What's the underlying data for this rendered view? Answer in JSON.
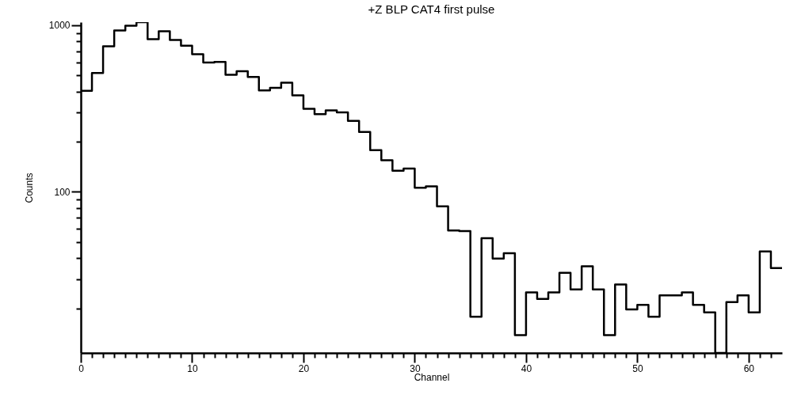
{
  "chart_data": {
    "type": "histogram",
    "title": "+Z BLP CAT4 first pulse",
    "xlabel": "Channel",
    "ylabel": "Counts",
    "bins": [
      0,
      1,
      2,
      3,
      4,
      5,
      6,
      7,
      8,
      9,
      10,
      11,
      12,
      13,
      14,
      15,
      16,
      17,
      18,
      19,
      20,
      21,
      22,
      23,
      24,
      25,
      26,
      27,
      28,
      29,
      30,
      31,
      32,
      33,
      34,
      35,
      36,
      37,
      38,
      39,
      40,
      41,
      42,
      43,
      44,
      45,
      46,
      47,
      48,
      49,
      50,
      51,
      52,
      53,
      54,
      55,
      56,
      57,
      58,
      59,
      60,
      61,
      62,
      63
    ],
    "values": [
      404,
      517,
      748,
      930,
      995,
      1044,
      826,
      920,
      817,
      755,
      670,
      597,
      603,
      504,
      530,
      490,
      406,
      421,
      452,
      380,
      315,
      293,
      308,
      300,
      267,
      229,
      178,
      155,
      134,
      138,
      106,
      108,
      82,
      58.6,
      58.2,
      17.8,
      52.8,
      39.8,
      42.8,
      13.8,
      24.9,
      22.8,
      24.9,
      32.7,
      26.0,
      35.8,
      26.0,
      13.8,
      27.8,
      19.7,
      21.0,
      17.8,
      23.9,
      23.9,
      24.9,
      21.0,
      18.9,
      null,
      21.8,
      23.9,
      18.9,
      43.9,
      34.9
    ],
    "color": "#000000",
    "log": "y",
    "grid": false,
    "xlim": [
      0,
      63
    ],
    "ylim": [
      10.8,
      1044
    ],
    "xticks": [
      0,
      {
        "value": 1,
        "label": null
      },
      {
        "value": 2,
        "label": null
      },
      {
        "value": 3,
        "label": null
      },
      {
        "value": 4,
        "label": null
      },
      {
        "value": 5,
        "label": null
      },
      {
        "value": 6,
        "label": null
      },
      {
        "value": 7,
        "label": null
      },
      {
        "value": 8,
        "label": null
      },
      {
        "value": 9,
        "label": null
      },
      10,
      {
        "value": 11,
        "label": null
      },
      {
        "value": 12,
        "label": null
      },
      {
        "value": 13,
        "label": null
      },
      {
        "value": 14,
        "label": null
      },
      {
        "value": 15,
        "label": null
      },
      {
        "value": 16,
        "label": null
      },
      {
        "value": 17,
        "label": null
      },
      {
        "value": 18,
        "label": null
      },
      {
        "value": 19,
        "label": null
      },
      20,
      {
        "value": 21,
        "label": null
      },
      {
        "value": 22,
        "label": null
      },
      {
        "value": 23,
        "label": null
      },
      {
        "value": 24,
        "label": null
      },
      {
        "value": 25,
        "label": null
      },
      {
        "value": 26,
        "label": null
      },
      {
        "value": 27,
        "label": null
      },
      {
        "value": 28,
        "label": null
      },
      {
        "value": 29,
        "label": null
      },
      30,
      {
        "value": 31,
        "label": null
      },
      {
        "value": 32,
        "label": null
      },
      {
        "value": 33,
        "label": null
      },
      {
        "value": 34,
        "label": null
      },
      {
        "value": 35,
        "label": null
      },
      {
        "value": 36,
        "label": null
      },
      {
        "value": 37,
        "label": null
      },
      {
        "value": 38,
        "label": null
      },
      {
        "value": 39,
        "label": null
      },
      40,
      {
        "value": 41,
        "label": null
      },
      {
        "value": 42,
        "label": null
      },
      {
        "value": 43,
        "label": null
      },
      {
        "value": 44,
        "label": null
      },
      {
        "value": 45,
        "label": null
      },
      {
        "value": 46,
        "label": null
      },
      {
        "value": 47,
        "label": null
      },
      {
        "value": 48,
        "label": null
      },
      {
        "value": 49,
        "label": null
      },
      50,
      {
        "value": 51,
        "label": null
      },
      {
        "value": 52,
        "label": null
      },
      {
        "value": 53,
        "label": null
      },
      {
        "value": 54,
        "label": null
      },
      {
        "value": 55,
        "label": null
      },
      {
        "value": 56,
        "label": null
      },
      {
        "value": 57,
        "label": null
      },
      {
        "value": 58,
        "label": null
      },
      {
        "value": 59,
        "label": null
      },
      60,
      {
        "value": 61,
        "label": null
      },
      {
        "value": 62,
        "label": null
      }
    ],
    "yticks": [
      {
        "value": 20,
        "label": null
      },
      {
        "value": 30,
        "label": null
      },
      {
        "value": 40,
        "label": null
      },
      {
        "value": 50,
        "label": null
      },
      {
        "value": 60,
        "label": null
      },
      {
        "value": 70,
        "label": null
      },
      {
        "value": 80,
        "label": null
      },
      {
        "value": 90,
        "label": null
      },
      100,
      {
        "value": 200,
        "label": null
      },
      {
        "value": 300,
        "label": null
      },
      {
        "value": 400,
        "label": null
      },
      {
        "value": 500,
        "label": null
      },
      {
        "value": 600,
        "label": null
      },
      {
        "value": 700,
        "label": null
      },
      {
        "value": 800,
        "label": null
      },
      {
        "value": 900,
        "label": null
      },
      1000
    ]
  }
}
